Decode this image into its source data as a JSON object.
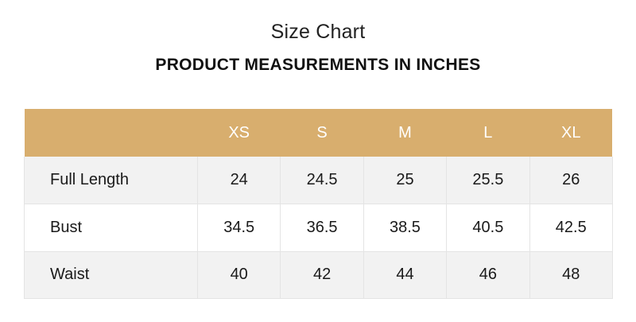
{
  "header": {
    "title": "Size Chart",
    "subtitle": "PRODUCT MEASUREMENTS IN INCHES"
  },
  "table": {
    "header_color": "#d8ae6e",
    "corner_label": "",
    "columns": [
      "XS",
      "S",
      "M",
      "L",
      "XL"
    ],
    "rows": [
      {
        "label": "Full Length",
        "values": [
          "24",
          "24.5",
          "25",
          "25.5",
          "26"
        ]
      },
      {
        "label": "Bust",
        "values": [
          "34.5",
          "36.5",
          "38.5",
          "40.5",
          "42.5"
        ]
      },
      {
        "label": "Waist",
        "values": [
          "40",
          "42",
          "44",
          "46",
          "48"
        ]
      }
    ]
  }
}
